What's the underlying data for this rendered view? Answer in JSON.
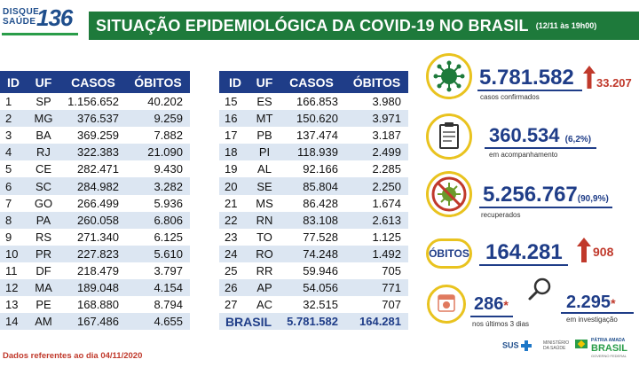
{
  "header": {
    "logo_top": "DISQUE",
    "logo_bottom": "SAÚDE",
    "logo_number": "136",
    "title": "SITUAÇÃO EPIDEMIOLÓGICA DA COVID-19 NO BRASIL",
    "date": "(12/11 às 19h00)"
  },
  "table": {
    "headers": [
      "ID",
      "UF",
      "CASOS",
      "ÓBITOS"
    ],
    "left_rows": [
      [
        "1",
        "SP",
        "1.156.652",
        "40.202"
      ],
      [
        "2",
        "MG",
        "376.537",
        "9.259"
      ],
      [
        "3",
        "BA",
        "369.259",
        "7.882"
      ],
      [
        "4",
        "RJ",
        "322.383",
        "21.090"
      ],
      [
        "5",
        "CE",
        "282.471",
        "9.430"
      ],
      [
        "6",
        "SC",
        "284.982",
        "3.282"
      ],
      [
        "7",
        "GO",
        "266.499",
        "5.936"
      ],
      [
        "8",
        "PA",
        "260.058",
        "6.806"
      ],
      [
        "9",
        "RS",
        "271.340",
        "6.125"
      ],
      [
        "10",
        "PR",
        "227.823",
        "5.610"
      ],
      [
        "11",
        "DF",
        "218.479",
        "3.797"
      ],
      [
        "12",
        "MA",
        "189.048",
        "4.154"
      ],
      [
        "13",
        "PE",
        "168.880",
        "8.794"
      ],
      [
        "14",
        "AM",
        "167.486",
        "4.655"
      ]
    ],
    "right_rows": [
      [
        "15",
        "ES",
        "166.853",
        "3.980"
      ],
      [
        "16",
        "MT",
        "150.620",
        "3.971"
      ],
      [
        "17",
        "PB",
        "137.474",
        "3.187"
      ],
      [
        "18",
        "PI",
        "118.939",
        "2.499"
      ],
      [
        "19",
        "AL",
        "92.166",
        "2.285"
      ],
      [
        "20",
        "SE",
        "85.804",
        "2.250"
      ],
      [
        "21",
        "MS",
        "86.428",
        "1.674"
      ],
      [
        "22",
        "RN",
        "83.108",
        "2.613"
      ],
      [
        "23",
        "TO",
        "77.528",
        "1.125"
      ],
      [
        "24",
        "RO",
        "74.248",
        "1.492"
      ],
      [
        "25",
        "RR",
        "59.946",
        "705"
      ],
      [
        "26",
        "AP",
        "54.056",
        "771"
      ],
      [
        "27",
        "AC",
        "32.515",
        "707"
      ]
    ],
    "total": {
      "label": "BRASIL",
      "casos": "5.781.582",
      "obitos": "164.281"
    }
  },
  "note": "Dados referentes ao dia 04/11/2020",
  "stats": {
    "confirmados": {
      "value": "5.781.582",
      "delta": "33.207",
      "label": "casos confirmados",
      "icon": "virus-icon"
    },
    "acompanhamento": {
      "value": "360.534",
      "pct": "(6,2%)",
      "label": "em acompanhamento",
      "icon": "clipboard-icon"
    },
    "recuperados": {
      "value": "5.256.767",
      "pct": "(90,9%)",
      "label": "recuperados",
      "icon": "virus-crossed-icon"
    },
    "obitos": {
      "badge": "ÓBITOS",
      "value": "164.281",
      "delta": "908"
    },
    "ultimos": {
      "value": "286",
      "mark": "*",
      "label": "nos últimos 3 dias",
      "icon": "calendar-icon"
    },
    "investigacao": {
      "value": "2.295",
      "mark": "*",
      "label": "em investigação",
      "icon": "magnifier-icon"
    }
  },
  "footer": {
    "sus": "SUS",
    "ministerio": "MINISTÉRIO DA SAÚDE",
    "patria": "PÁTRIA AMADA",
    "brasil": "BRASIL",
    "gov": "GOVERNO FEDERAL"
  },
  "colors": {
    "green": "#1e7a3b",
    "navy": "#1f3d88",
    "red": "#c0392b",
    "yellow": "#e9c31f",
    "row_alt": "#dce6f2"
  }
}
